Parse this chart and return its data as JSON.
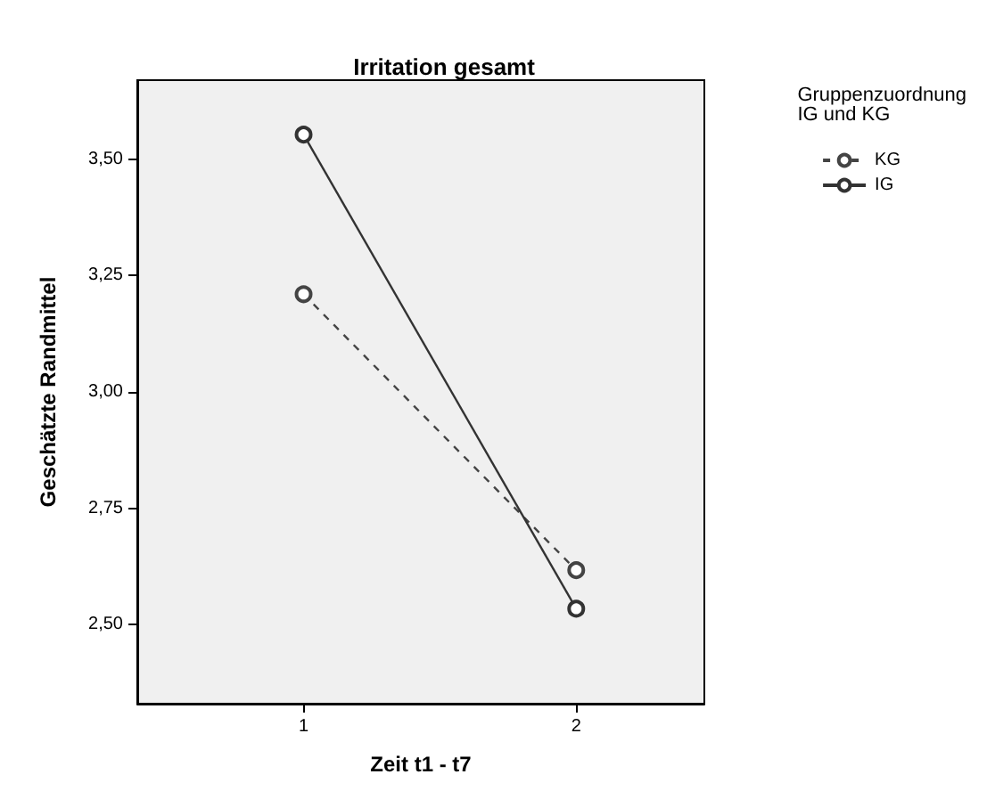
{
  "chart_data": {
    "type": "line",
    "title": "Irritation gesamt",
    "xlabel": "Zeit t1 - t7",
    "ylabel": "Geschätzte Randmittel",
    "legend_title": "Gruppenzuordnung\nIG und KG",
    "x": [
      1,
      2
    ],
    "xlim": [
      0.39,
      2.47
    ],
    "xticks": [
      1,
      2
    ],
    "ylim": [
      2.33,
      3.67
    ],
    "yticks": [
      {
        "value": 2.5,
        "label": "2,50"
      },
      {
        "value": 2.75,
        "label": "2,75"
      },
      {
        "value": 3,
        "label": "3,00"
      },
      {
        "value": 3.25,
        "label": "3,25"
      },
      {
        "value": 3.5,
        "label": "3,50"
      }
    ],
    "series": [
      {
        "name": "KG",
        "color": "#444444",
        "values": [
          3.21,
          2.617
        ],
        "line_style": "dashed"
      },
      {
        "name": "IG",
        "color": "#333333",
        "values": [
          3.553,
          2.534
        ],
        "line_style": "solid"
      }
    ],
    "marker": "circle",
    "grid": false,
    "legend": "top right"
  }
}
